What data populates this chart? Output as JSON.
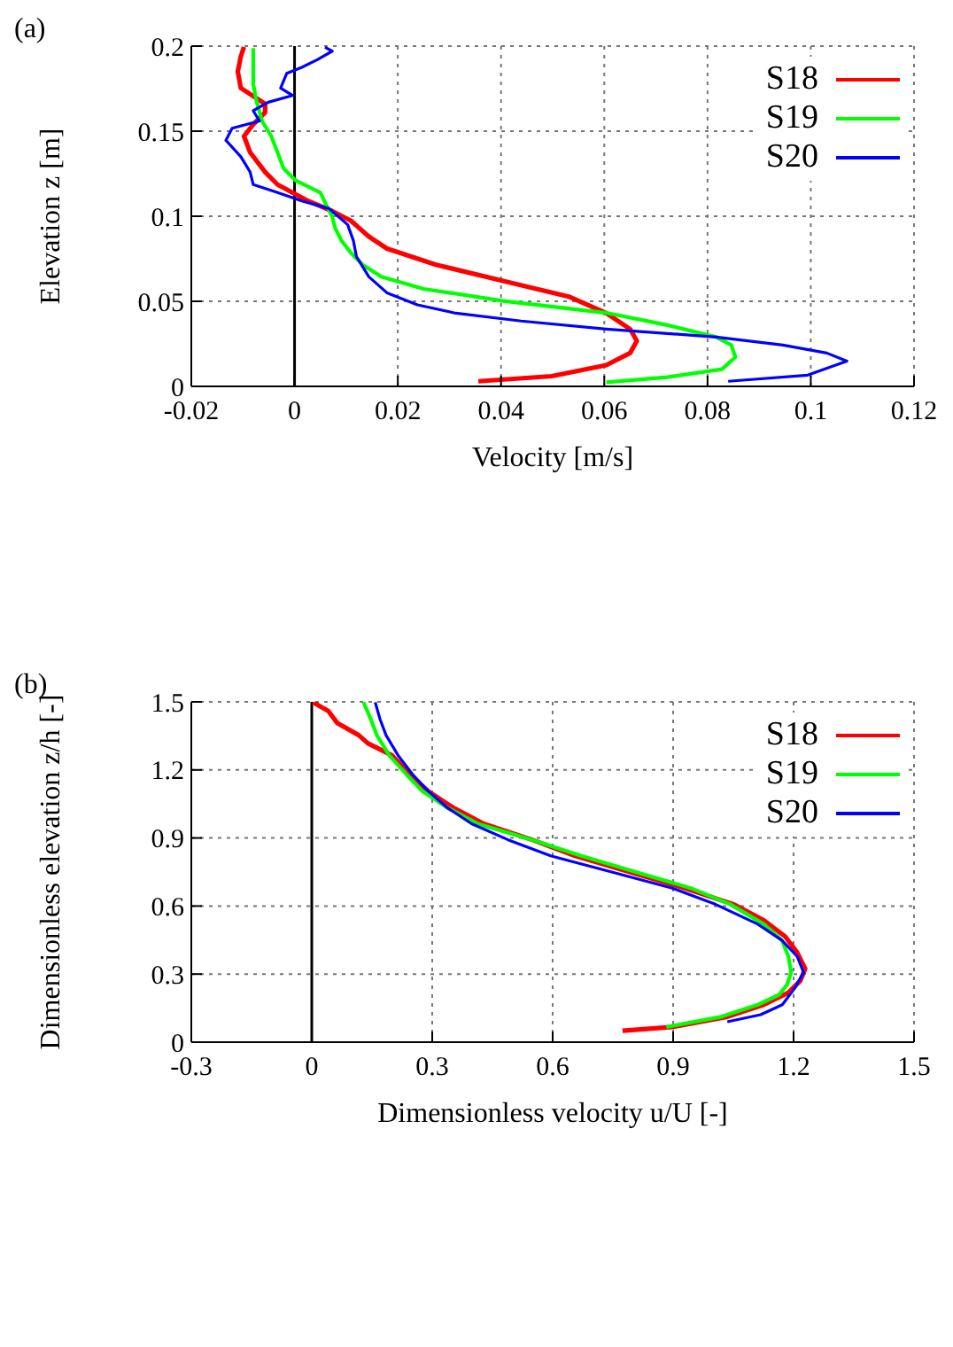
{
  "chart_data": [
    {
      "type": "line",
      "xlabel": "Velocity [m/s]",
      "ylabel": "Elevation z [m]",
      "annotations": [
        "(a)"
      ],
      "xlim": [
        -0.02,
        0.12
      ],
      "xticks": [
        -0.02,
        0,
        0.02,
        0.04,
        0.06,
        0.08,
        0.1,
        0.12
      ],
      "ylim": [
        0,
        0.2
      ],
      "yticks": [
        0,
        0.05,
        0.1,
        0.15,
        0.2
      ],
      "grid": true,
      "legend": "top right",
      "marker": "none",
      "line_style": "solid",
      "ref_lines": [
        {
          "axis": "x",
          "value": 0,
          "color": "#000000"
        }
      ],
      "series": [
        {
          "name": "S18",
          "color": "#ff0000",
          "x": [
            0.0356,
            0.0498,
            0.0604,
            0.065,
            0.0663,
            0.065,
            0.0604,
            0.0533,
            0.0404,
            0.0274,
            0.0179,
            0.0144,
            0.0109,
            0.0073,
            0.0026,
            -0.0033,
            -0.0057,
            -0.0086,
            -0.0098,
            -0.008,
            -0.0057,
            -0.0057,
            -0.0104,
            -0.011,
            -0.0104,
            -0.0098
          ],
          "values": [
            0.003,
            0.006,
            0.0125,
            0.0196,
            0.0267,
            0.0337,
            0.043,
            0.0526,
            0.062,
            0.0715,
            0.081,
            0.088,
            0.0974,
            0.103,
            0.109,
            0.1186,
            0.126,
            0.1375,
            0.147,
            0.154,
            0.161,
            0.166,
            0.1753,
            0.185,
            0.194,
            0.1995
          ]
        },
        {
          "name": "S19",
          "color": "#00ff00",
          "x": [
            0.0604,
            0.0722,
            0.0828,
            0.0854,
            0.0846,
            0.0817,
            0.0722,
            0.0604,
            0.0404,
            0.025,
            0.0168,
            0.0132,
            0.0109,
            0.0091,
            0.0079,
            0.0073,
            0.0061,
            0.005,
            0.0002,
            -0.0021,
            -0.0033,
            -0.0045,
            -0.0063,
            -0.0074,
            -0.008,
            -0.008,
            -0.008
          ],
          "values": [
            0.0024,
            0.0054,
            0.0101,
            0.0172,
            0.0243,
            0.029,
            0.036,
            0.0432,
            0.0502,
            0.0573,
            0.0644,
            0.0715,
            0.0785,
            0.0856,
            0.0927,
            0.0998,
            0.1068,
            0.1139,
            0.121,
            0.128,
            0.1375,
            0.147,
            0.156,
            0.168,
            0.1776,
            0.187,
            0.1988
          ]
        },
        {
          "name": "S20",
          "color": "#0000ff",
          "x": [
            0.084,
            0.0994,
            0.107,
            0.1031,
            0.0946,
            0.0817,
            0.0604,
            0.0439,
            0.0309,
            0.0238,
            0.0179,
            0.0144,
            0.012,
            0.0114,
            0.0103,
            0.0067,
            0.0014,
            -0.0033,
            -0.008,
            -0.0086,
            -0.0104,
            -0.0133,
            -0.0121,
            -0.0068,
            -0.008,
            -0.0051,
            -0.0004,
            -0.0027,
            -0.0015,
            0.0014,
            0.0044,
            0.0073,
            0.0059
          ],
          "values": [
            0.003,
            0.0066,
            0.0149,
            0.0196,
            0.0243,
            0.029,
            0.0337,
            0.0384,
            0.0432,
            0.0479,
            0.055,
            0.0644,
            0.0762,
            0.0856,
            0.095,
            0.1045,
            0.109,
            0.1139,
            0.1186,
            0.126,
            0.135,
            0.1446,
            0.1517,
            0.156,
            0.162,
            0.167,
            0.171,
            0.1753,
            0.184,
            0.1875,
            0.192,
            0.197,
            0.1993
          ]
        }
      ]
    },
    {
      "type": "line",
      "xlabel": "Dimensionless velocity u/U [-]",
      "ylabel": "Dimensionless elevation z/h [-]",
      "annotations": [
        "(b)"
      ],
      "xlim": [
        -0.3,
        1.5
      ],
      "xticks": [
        -0.3,
        0,
        0.3,
        0.6,
        0.9,
        1.2,
        1.5
      ],
      "ylim": [
        0,
        1.5
      ],
      "yticks": [
        0,
        0.3,
        0.6,
        0.9,
        1.2,
        1.5
      ],
      "grid": true,
      "legend": "top right",
      "marker": "none",
      "line_style": "solid",
      "ref_lines": [
        {
          "axis": "x",
          "value": 0,
          "color": "#000000"
        }
      ],
      "series": [
        {
          "name": "S18",
          "color": "#ff0000",
          "x": [
            0.774,
            0.898,
            1.035,
            1.126,
            1.187,
            1.217,
            1.229,
            1.209,
            1.179,
            1.126,
            1.05,
            0.929,
            0.792,
            0.656,
            0.549,
            0.428,
            0.352,
            0.291,
            0.246,
            0.2,
            0.14,
            0.117,
            0.064,
            0.041,
            0.003
          ],
          "values": [
            0.05,
            0.067,
            0.112,
            0.165,
            0.218,
            0.271,
            0.324,
            0.395,
            0.466,
            0.537,
            0.608,
            0.679,
            0.75,
            0.821,
            0.892,
            0.963,
            1.034,
            1.105,
            1.176,
            1.264,
            1.317,
            1.353,
            1.406,
            1.46,
            1.498
          ]
        },
        {
          "name": "S19",
          "color": "#00ff00",
          "x": [
            0.883,
            1.02,
            1.111,
            1.164,
            1.184,
            1.194,
            1.187,
            1.171,
            1.126,
            1.042,
            0.944,
            0.807,
            0.671,
            0.549,
            0.413,
            0.337,
            0.276,
            0.238,
            0.193,
            0.162,
            0.147,
            0.129
          ],
          "values": [
            0.067,
            0.112,
            0.165,
            0.209,
            0.254,
            0.307,
            0.378,
            0.449,
            0.52,
            0.608,
            0.679,
            0.75,
            0.821,
            0.892,
            0.963,
            1.034,
            1.105,
            1.176,
            1.264,
            1.353,
            1.424,
            1.498
          ]
        },
        {
          "name": "S20",
          "color": "#0000ff",
          "x": [
            1.035,
            1.118,
            1.172,
            1.202,
            1.225,
            1.209,
            1.171,
            1.111,
            1.005,
            0.898,
            0.747,
            0.595,
            0.489,
            0.398,
            0.337,
            0.291,
            0.253,
            0.215,
            0.185,
            0.17,
            0.158
          ],
          "values": [
            0.09,
            0.121,
            0.165,
            0.236,
            0.307,
            0.378,
            0.449,
            0.52,
            0.608,
            0.679,
            0.75,
            0.821,
            0.892,
            0.963,
            1.034,
            1.105,
            1.176,
            1.264,
            1.353,
            1.424,
            1.498
          ]
        }
      ]
    }
  ]
}
